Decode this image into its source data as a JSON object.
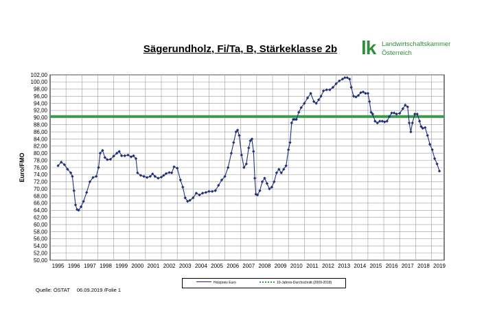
{
  "chart_data": {
    "type": "line",
    "title": "Sägerundholz, Fi/Ta, B, Stärkeklasse 2b",
    "ylabel": "Euro/FMO",
    "xlabel": "",
    "ylim": [
      50,
      102
    ],
    "yticks": [
      "50,00",
      "52,00",
      "54,00",
      "56,00",
      "58,00",
      "60,00",
      "62,00",
      "64,00",
      "66,00",
      "68,00",
      "70,00",
      "72,00",
      "74,00",
      "76,00",
      "78,00",
      "80,00",
      "82,00",
      "84,00",
      "86,00",
      "88,00",
      "90,00",
      "92,00",
      "94,00",
      "96,00",
      "98,00",
      "100,00",
      "102,00"
    ],
    "xticks": [
      "1995",
      "1996",
      "1997",
      "1998",
      "1999",
      "2000",
      "2001",
      "2002",
      "2003",
      "2004",
      "2005",
      "2006",
      "2007",
      "2008",
      "2009",
      "2010",
      "2011",
      "2012",
      "2013",
      "2014",
      "2015",
      "2016",
      "2017",
      "2018",
      "2019"
    ],
    "grid": true,
    "legend_position": "bottom",
    "series": [
      {
        "name": "Holzpreis Euro",
        "color": "#1f2f7a",
        "marker": "diamond",
        "x": [
          1995.0,
          1995.2,
          1995.4,
          1995.6,
          1995.8,
          1995.9,
          1996.0,
          1996.1,
          1996.2,
          1996.3,
          1996.45,
          1996.6,
          1996.8,
          1997.0,
          1997.2,
          1997.4,
          1997.55,
          1997.65,
          1997.8,
          1997.95,
          1998.1,
          1998.3,
          1998.5,
          1998.7,
          1998.85,
          1999.0,
          1999.2,
          1999.4,
          1999.6,
          1999.75,
          1999.9,
          2000.0,
          2000.2,
          2000.4,
          2000.6,
          2000.8,
          2000.95,
          2001.1,
          2001.3,
          2001.5,
          2001.65,
          2001.8,
          2002.0,
          2002.15,
          2002.3,
          2002.5,
          2002.7,
          2002.85,
          2003.0,
          2003.15,
          2003.3,
          2003.5,
          2003.7,
          2003.9,
          2004.1,
          2004.3,
          2004.5,
          2004.7,
          2004.9,
          2005.1,
          2005.3,
          2005.5,
          2005.7,
          2005.9,
          2006.05,
          2006.2,
          2006.3,
          2006.4,
          2006.55,
          2006.7,
          2006.85,
          2007.0,
          2007.1,
          2007.2,
          2007.3,
          2007.38,
          2007.45,
          2007.55,
          2007.7,
          2007.85,
          2008.0,
          2008.15,
          2008.3,
          2008.45,
          2008.6,
          2008.75,
          2008.9,
          2009.05,
          2009.2,
          2009.35,
          2009.5,
          2009.6,
          2009.7,
          2009.8,
          2009.9,
          2010.0,
          2010.15,
          2010.3,
          2010.5,
          2010.7,
          2010.9,
          2011.1,
          2011.25,
          2011.4,
          2011.55,
          2011.7,
          2011.9,
          2012.1,
          2012.3,
          2012.5,
          2012.7,
          2012.9,
          2013.05,
          2013.2,
          2013.35,
          2013.45,
          2013.6,
          2013.75,
          2013.9,
          2014.05,
          2014.2,
          2014.35,
          2014.5,
          2014.6,
          2014.7,
          2014.8,
          2014.95,
          2015.1,
          2015.25,
          2015.4,
          2015.55,
          2015.7,
          2015.85,
          2016.0,
          2016.15,
          2016.3,
          2016.5,
          2016.7,
          2016.85,
          2017.0,
          2017.1,
          2017.2,
          2017.3,
          2017.45,
          2017.6,
          2017.75,
          2017.85,
          2017.95,
          2018.1,
          2018.25,
          2018.4,
          2018.55,
          2018.7,
          2018.85,
          2019.0
        ],
        "values": [
          76.5,
          77.5,
          76.8,
          75.5,
          74.5,
          73.5,
          69.5,
          65.5,
          64.2,
          64.0,
          65.0,
          66.5,
          69.0,
          72.0,
          73.2,
          73.5,
          76.0,
          80.0,
          80.8,
          78.8,
          78.2,
          78.3,
          79.2,
          80.0,
          80.5,
          79.3,
          79.3,
          79.5,
          79.0,
          79.3,
          78.5,
          74.5,
          73.8,
          73.5,
          73.2,
          73.5,
          74.2,
          73.5,
          73.0,
          73.3,
          73.8,
          74.3,
          74.6,
          74.5,
          76.2,
          75.8,
          72.5,
          70.5,
          67.5,
          66.5,
          66.8,
          67.5,
          68.8,
          68.3,
          68.8,
          69.0,
          69.3,
          69.3,
          69.5,
          71.0,
          72.5,
          73.5,
          76.0,
          80.0,
          83.0,
          86.0,
          86.5,
          85.0,
          79.5,
          76.0,
          77.0,
          81.5,
          83.5,
          84.0,
          80.5,
          73.0,
          68.5,
          68.3,
          69.5,
          72.0,
          73.0,
          71.5,
          70.0,
          70.5,
          72.0,
          74.5,
          75.5,
          74.5,
          75.5,
          76.5,
          81.0,
          83.0,
          88.5,
          89.5,
          89.5,
          89.5,
          91.5,
          92.8,
          94.0,
          95.5,
          96.8,
          94.5,
          94.0,
          95.0,
          96.0,
          97.5,
          97.8,
          97.8,
          98.5,
          99.5,
          100.3,
          100.8,
          101.2,
          101.2,
          100.8,
          98.5,
          96.0,
          95.8,
          96.2,
          97.0,
          97.2,
          96.8,
          96.8,
          94.5,
          91.5,
          91.0,
          89.0,
          88.5,
          89.0,
          89.0,
          88.8,
          89.0,
          90.3,
          91.3,
          91.3,
          91.0,
          91.2,
          92.5,
          93.5,
          93.0,
          88.5,
          86.0,
          88.5,
          91.0,
          91.0,
          89.0,
          87.5,
          87.0,
          87.2,
          85.0,
          82.5,
          81.0,
          78.5,
          77.0,
          75.0
        ]
      },
      {
        "name": "10-Jahres-Durchschnitt (2009-2018)",
        "color": "#3c9a4a",
        "values": [
          90.3
        ]
      }
    ]
  },
  "footer": {
    "source": "Quelle: ÖSTAT",
    "date": "06.09.2019 /Folie 1"
  },
  "logo": {
    "mark": "lk",
    "line1": "Landwirtschaftskammer",
    "line2": "Österreich"
  }
}
